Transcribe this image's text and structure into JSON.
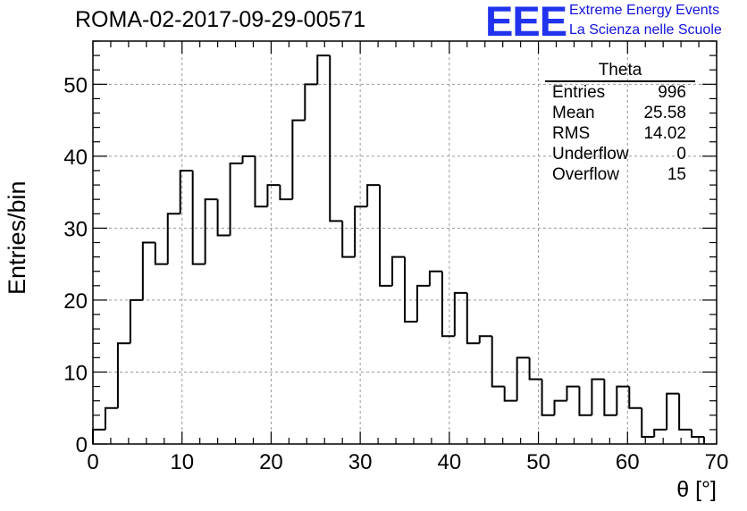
{
  "header": {
    "title": "ROMA-02-2017-09-29-00571",
    "logo": "EEE",
    "logo_line1": "Extreme Energy Events",
    "logo_line2": "La Scienza nelle Scuole"
  },
  "stats_box": {
    "title": "Theta",
    "rows": [
      {
        "label": "Entries",
        "value": "996"
      },
      {
        "label": "Mean",
        "value": "25.58"
      },
      {
        "label": "RMS",
        "value": "14.02"
      },
      {
        "label": "Underflow",
        "value": "0"
      },
      {
        "label": "Overflow",
        "value": "15"
      }
    ]
  },
  "chart_data": {
    "type": "bar",
    "style": "step-histogram",
    "ylabel": "Entries/bin",
    "xlabel": "θ [°]",
    "xlim": [
      0,
      70
    ],
    "ylim": [
      0,
      56
    ],
    "xticks": [
      0,
      10,
      20,
      30,
      40,
      50,
      60,
      70
    ],
    "yticks": [
      0,
      10,
      20,
      30,
      40,
      50
    ],
    "grid": true,
    "bin_width": 1.4,
    "x_start": 0,
    "values": [
      2,
      5,
      14,
      20,
      28,
      25,
      32,
      38,
      25,
      34,
      29,
      39,
      40,
      33,
      36,
      34,
      45,
      50,
      54,
      31,
      26,
      33,
      36,
      22,
      26,
      17,
      22,
      24,
      15,
      21,
      14,
      15,
      8,
      6,
      12,
      9,
      4,
      6,
      8,
      4,
      9,
      4,
      8,
      5,
      1,
      2,
      7,
      2,
      1
    ],
    "line_color": "#000000"
  }
}
